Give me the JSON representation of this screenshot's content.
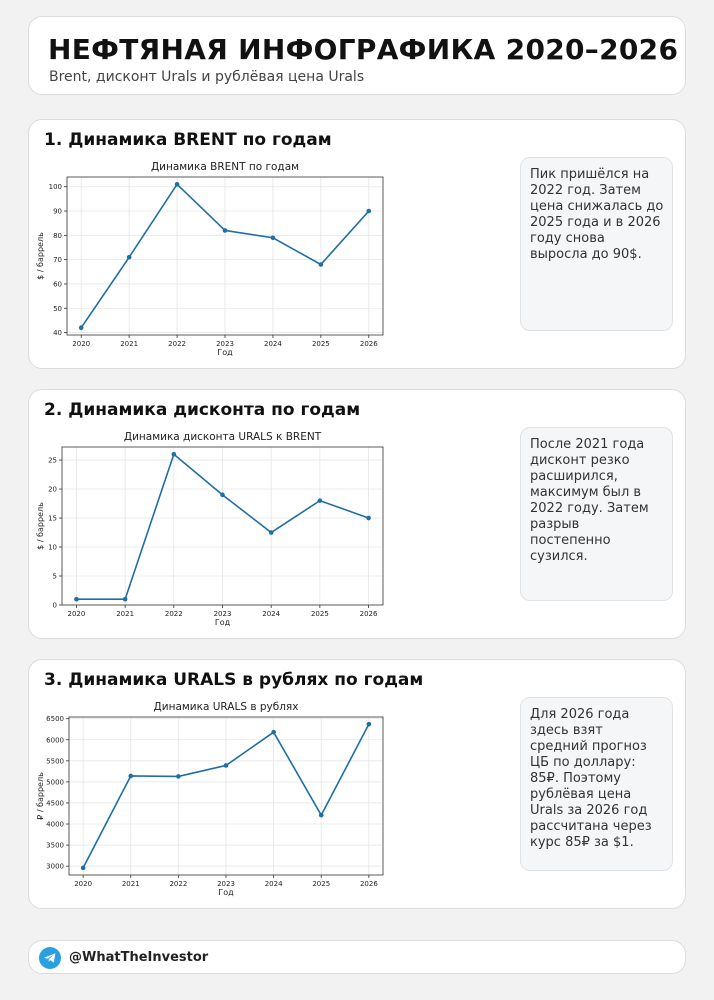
{
  "header": {
    "title": "НЕФТЯНАЯ ИНФОГРАФИКА 2020–2026",
    "subtitle": "Brent, дисконт Urals и рублёвая цена Urals"
  },
  "sections": [
    {
      "heading": "1. Динамика BRENT по годам",
      "note": "Пик пришёлся на 2022 год. Затем цена снижалась до 2025 года и в 2026 году снова выросла до 90$.",
      "chart_data": {
        "type": "line",
        "title": "Динамика BRENT по годам",
        "xlabel": "Год",
        "ylabel": "$ / баррель",
        "x": [
          2020,
          2021,
          2022,
          2023,
          2024,
          2025,
          2026
        ],
        "values": [
          42,
          71,
          101,
          82,
          79,
          68,
          90
        ],
        "ylim": [
          39,
          104
        ],
        "yticks": [
          40,
          50,
          60,
          70,
          80,
          90,
          100
        ],
        "grid": true,
        "color": "#1f6fa5"
      }
    },
    {
      "heading": "2. Динамика дисконта по годам",
      "note": "После 2021 года дисконт резко расширился, максимум был в 2022 году. Затем разрыв постепенно сузился.",
      "chart_data": {
        "type": "line",
        "title": "Динамика дисконта URALS к BRENT",
        "xlabel": "Год",
        "ylabel": "$ / баррель",
        "x": [
          2020,
          2021,
          2022,
          2023,
          2024,
          2025,
          2026
        ],
        "values": [
          1,
          1,
          26,
          19,
          12.5,
          18,
          15
        ],
        "ylim": [
          0,
          27.25
        ],
        "yticks": [
          0,
          5,
          10,
          15,
          20,
          25
        ],
        "grid": true,
        "color": "#1f6fa5"
      }
    },
    {
      "heading": "3. Динамика URALS в рублях по годам",
      "note": "Для 2026 года здесь взят средний прогноз ЦБ по доллару: 85₽. Поэтому рублёвая цена Urals за 2026 год рассчитана через курс 85₽ за $1.",
      "chart_data": {
        "type": "line",
        "title": "Динамика URALS в рублях",
        "xlabel": "Год",
        "ylabel": "₽ / баррель",
        "x": [
          2020,
          2021,
          2022,
          2023,
          2024,
          2025,
          2026
        ],
        "values": [
          2960,
          5140,
          5130,
          5390,
          6180,
          4210,
          6370
        ],
        "ylim": [
          2790,
          6540
        ],
        "yticks": [
          3000,
          3500,
          4000,
          4500,
          5000,
          5500,
          6000,
          6500
        ],
        "grid": true,
        "color": "#1f6fa5"
      }
    }
  ],
  "footer": {
    "handle": "@WhatTheInvestor",
    "icon": "telegram-icon",
    "icon_color": "#2aa0e0"
  }
}
